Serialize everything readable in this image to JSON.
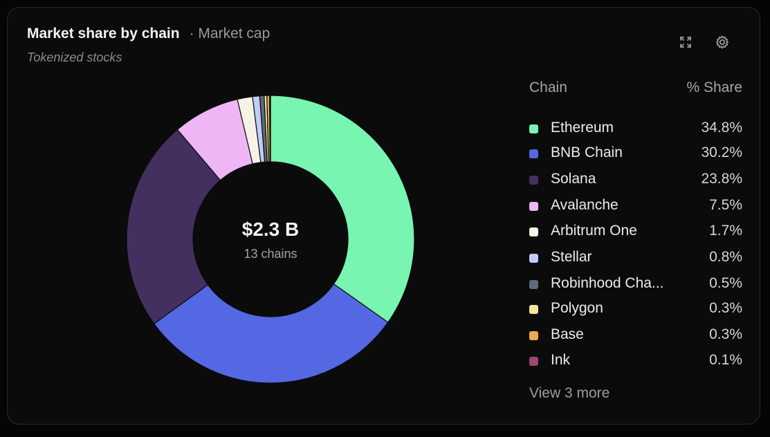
{
  "header": {
    "title": "Market share by chain",
    "subtitle": "· Market cap",
    "caption": "Tokenized stocks"
  },
  "toolbar": {
    "expand_icon": "expand-icon",
    "settings_icon": "gear-icon"
  },
  "center": {
    "value": "$2.3 B",
    "label": "13 chains"
  },
  "legend": {
    "col_chain": "Chain",
    "col_share": "% Share",
    "items": [
      {
        "name": "Ethereum",
        "share": "34.8%",
        "color": "#78f5b0"
      },
      {
        "name": "BNB Chain",
        "share": "30.2%",
        "color": "#5468e4"
      },
      {
        "name": "Solana",
        "share": "23.8%",
        "color": "#43305f"
      },
      {
        "name": "Avalanche",
        "share": "7.5%",
        "color": "#efb6f6"
      },
      {
        "name": "Arbitrum One",
        "share": "1.7%",
        "color": "#f6f2e6"
      },
      {
        "name": "Stellar",
        "share": "0.8%",
        "color": "#c1cdf8"
      },
      {
        "name": "Robinhood Cha...",
        "share": "0.5%",
        "color": "#5d6a7c"
      },
      {
        "name": "Polygon",
        "share": "0.3%",
        "color": "#f3e59a"
      },
      {
        "name": "Base",
        "share": "0.3%",
        "color": "#eda94f"
      },
      {
        "name": "Ink",
        "share": "0.1%",
        "color": "#9b4775"
      }
    ],
    "view_more": "View 3 more"
  },
  "chart_data": {
    "type": "pie",
    "donut": true,
    "title": "Market share by chain",
    "subtitle": "· Market cap",
    "categories": [
      "Ethereum",
      "BNB Chain",
      "Solana",
      "Avalanche",
      "Arbitrum One",
      "Stellar",
      "Robinhood Cha...",
      "Polygon",
      "Base",
      "Ink"
    ],
    "values": [
      34.8,
      30.2,
      23.8,
      7.5,
      1.7,
      0.8,
      0.5,
      0.3,
      0.3,
      0.1
    ],
    "colors": [
      "#78f5b0",
      "#5468e4",
      "#43305f",
      "#efb6f6",
      "#f6f2e6",
      "#c1cdf8",
      "#5d6a7c",
      "#f3e59a",
      "#eda94f",
      "#9b4775"
    ],
    "unit": "%",
    "legend_position": "right"
  }
}
